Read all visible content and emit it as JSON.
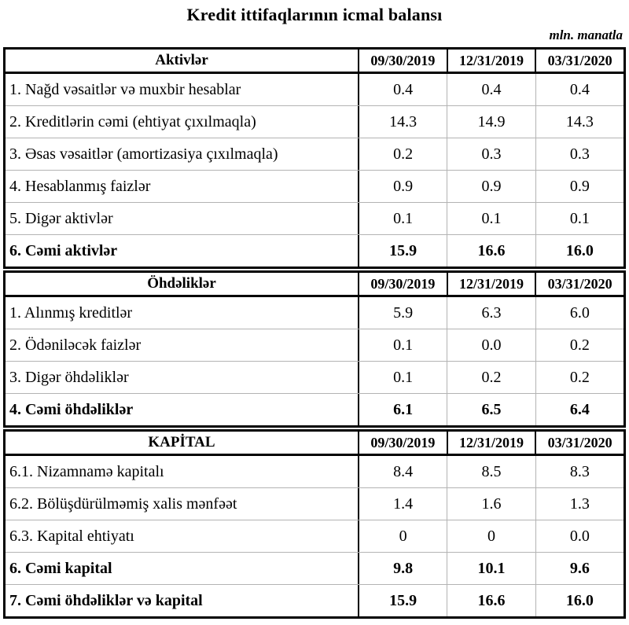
{
  "title": "Kredit ittifaqlarının icmal balansı",
  "unit_note": "mln. manatla",
  "date_columns": [
    "09/30/2019",
    "12/31/2019",
    "03/31/2020"
  ],
  "sections": [
    {
      "name": "aktivler",
      "header": "Aktivlər",
      "rows": [
        {
          "label": "1. Nağd vəsaitlər və muxbir hesablar",
          "values": [
            "0.4",
            "0.4",
            "0.4"
          ],
          "bold": false
        },
        {
          "label": "2. Kreditlərin cəmi (ehtiyat çıxılmaqla)",
          "values": [
            "14.3",
            "14.9",
            "14.3"
          ],
          "bold": false
        },
        {
          "label": "3. Əsas vəsaitlər (amortizasiya çıxılmaqla)",
          "values": [
            "0.2",
            "0.3",
            "0.3"
          ],
          "bold": false
        },
        {
          "label": "4. Hesablanmış faizlər",
          "values": [
            "0.9",
            "0.9",
            "0.9"
          ],
          "bold": false
        },
        {
          "label": "5. Digər aktivlər",
          "values": [
            "0.1",
            "0.1",
            "0.1"
          ],
          "bold": false
        },
        {
          "label": "6. Cəmi aktivlər",
          "values": [
            "15.9",
            "16.6",
            "16.0"
          ],
          "bold": true
        }
      ]
    },
    {
      "name": "ohdelikler",
      "header": "Öhdəliklər",
      "rows": [
        {
          "label": "1. Alınmış kreditlər",
          "values": [
            "5.9",
            "6.3",
            "6.0"
          ],
          "bold": false
        },
        {
          "label": "2. Ödəniləcək faizlər",
          "values": [
            "0.1",
            "0.0",
            "0.2"
          ],
          "bold": false
        },
        {
          "label": "3. Digər öhdəliklər",
          "values": [
            "0.1",
            "0.2",
            "0.2"
          ],
          "bold": false
        },
        {
          "label": "4. Cəmi öhdəliklər",
          "values": [
            "6.1",
            "6.5",
            "6.4"
          ],
          "bold": true
        }
      ]
    },
    {
      "name": "kapital",
      "header": "KAPİTAL",
      "rows": [
        {
          "label": "6.1. Nizamnamə kapitalı",
          "values": [
            "8.4",
            "8.5",
            "8.3"
          ],
          "bold": false
        },
        {
          "label": "6.2. Bölüşdürülməmiş xalis mənfəət",
          "values": [
            "1.4",
            "1.6",
            "1.3"
          ],
          "bold": false
        },
        {
          "label": "6.3. Kapital ehtiyatı",
          "values": [
            "0",
            "0",
            "0.0"
          ],
          "bold": false
        },
        {
          "label": "6. Cəmi kapital",
          "values": [
            "9.8",
            "10.1",
            "9.6"
          ],
          "bold": true
        },
        {
          "label": "7. Cəmi öhdəliklər və kapital",
          "values": [
            "15.9",
            "16.6",
            "16.0"
          ],
          "bold": true
        }
      ]
    }
  ],
  "colors": {
    "border_strong": "#000000",
    "border_light": "#b3b3b3",
    "text": "#000000",
    "background": "#ffffff"
  }
}
